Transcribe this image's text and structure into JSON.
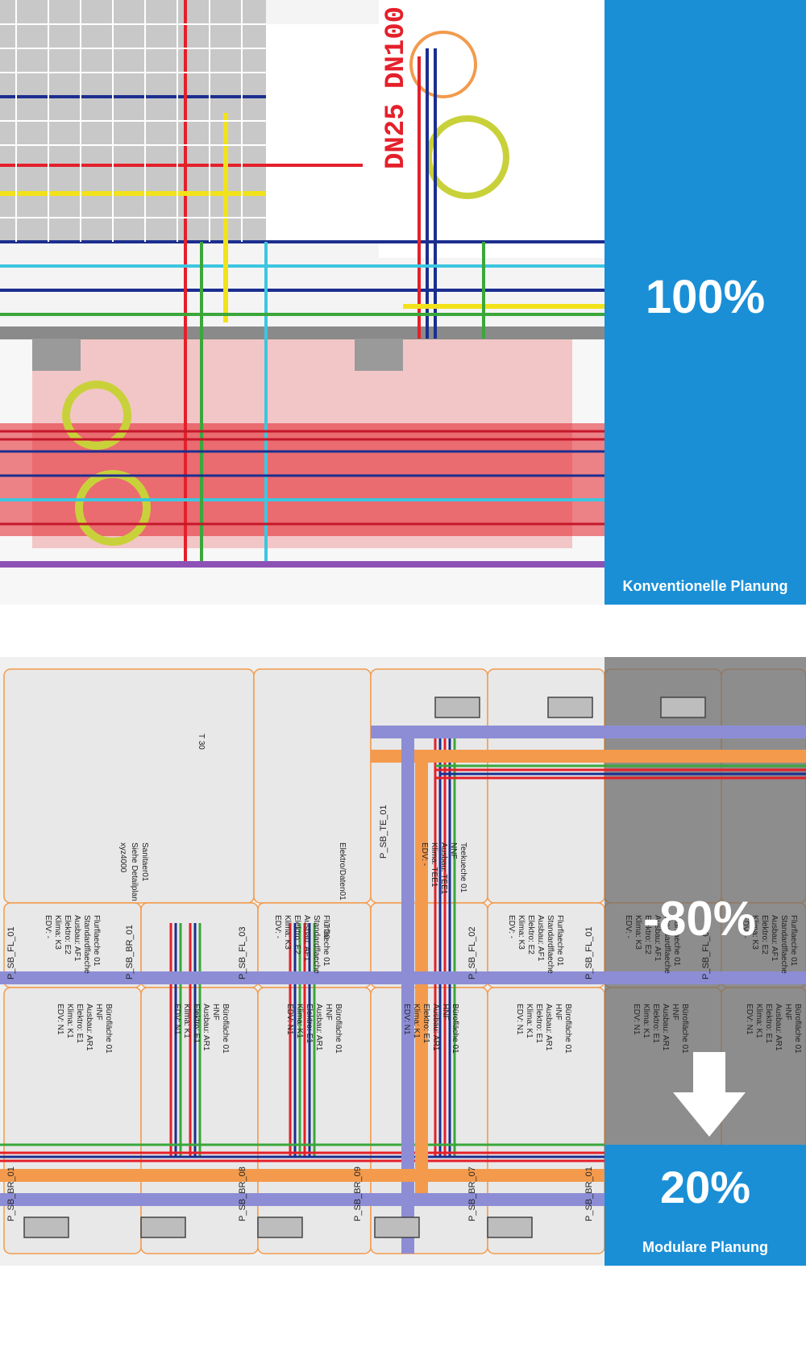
{
  "conventional": {
    "percent": "100%",
    "label": "Konventionelle Planung",
    "drawing_labels": [
      "DN25",
      "DN100"
    ]
  },
  "modular": {
    "percent": "20%",
    "label": "Modulare Planung",
    "reduction": "-80%",
    "rooms": [
      {
        "id": "P_SB_FL_01",
        "text": "Flurflaeche 01\nStandardflaeche\nAusbau: AF1\nElektro: E2\nKlima: K3\nEDV: -"
      },
      {
        "id": "P_SB_FL_03",
        "text": "Flurflaeche 01\nStandardflaeche\nAusbau: AF1\nElektro: E2\nKlima: K3\nEDV: -"
      },
      {
        "id": "P_SB_FL_02",
        "text": "Flurflaeche 01\nStandardflaeche\nAusbau: AF1\nElektro: E2\nKlima: K3\nEDV: -"
      },
      {
        "id": "P_SB_FL_01",
        "text": "Flurflaeche 01\nStandardflaeche\nAusbau: AF1\nElektro: E2\nKlima: K3\nEDV: -"
      },
      {
        "id": "P_SB_FL_01",
        "text": "Flurflaeche 01\nStandardflaeche\nAusbau: AF1\nElektro: E2\nKlima: K3\nEDV: -"
      },
      {
        "id": "P_SB_BR_01",
        "text": "Bürofläche 01\nHNF\nAusbau: AR1\nElektro: E1\nKlima: K1\nEDV: N1"
      },
      {
        "id": "P_SB_BR_08",
        "text": "Bürofläche 01\nHNF\nAusbau: AR1\nElektro: E1\nKlima: K1\nEDV: N1"
      },
      {
        "id": "P_SB_BR_09",
        "text": "Bürofläche 01\nHNF\nAusbau: AR1\nElektro: E1\nKlima: K1\nEDV: N1"
      },
      {
        "id": "P_SB_BR_07",
        "text": "Bürofläche 01\nHNF\nAusbau: AR1\nElektro: E1\nKlima: K1\nEDV: N1"
      },
      {
        "id": "P_SB_BR_01",
        "text": "Bürofläche 01\nHNF\nAusbau: AR1\nElektro: E1\nKlima: K1\nEDV: N1"
      },
      {
        "id": "P_SB_BR_01",
        "text": "Bürofläche 01\nHNF\nAusbau: AR1\nElektro: E1\nKlima: K1\nEDV: N1"
      },
      {
        "id": "P_SB_BR_01",
        "text": "Bürofläche 01\nHNF\nAusbau: AR1\nElektro: E1\nKlima: K1\nEDV: N1"
      },
      {
        "id": "P_SB_TE_01",
        "text": "Teekueche 01\nNNF\nAusbau: TEE1\nKlima: TEE1\nEDV: -"
      }
    ],
    "top_labels": [
      "Sanitaer01",
      "Siehe Detailplan",
      "xyz4000",
      "Elektro/Daten01"
    ],
    "marks": [
      "T 30",
      "T 30"
    ]
  },
  "colors": {
    "blue_box": "#1a8fd6",
    "red": "#e4202a",
    "yellow": "#f2e21a",
    "navy": "#1b2e8f",
    "cyan": "#3cc6e0",
    "green": "#3aa73a",
    "orange": "#f39a4c",
    "purple": "#8d8dd6"
  }
}
